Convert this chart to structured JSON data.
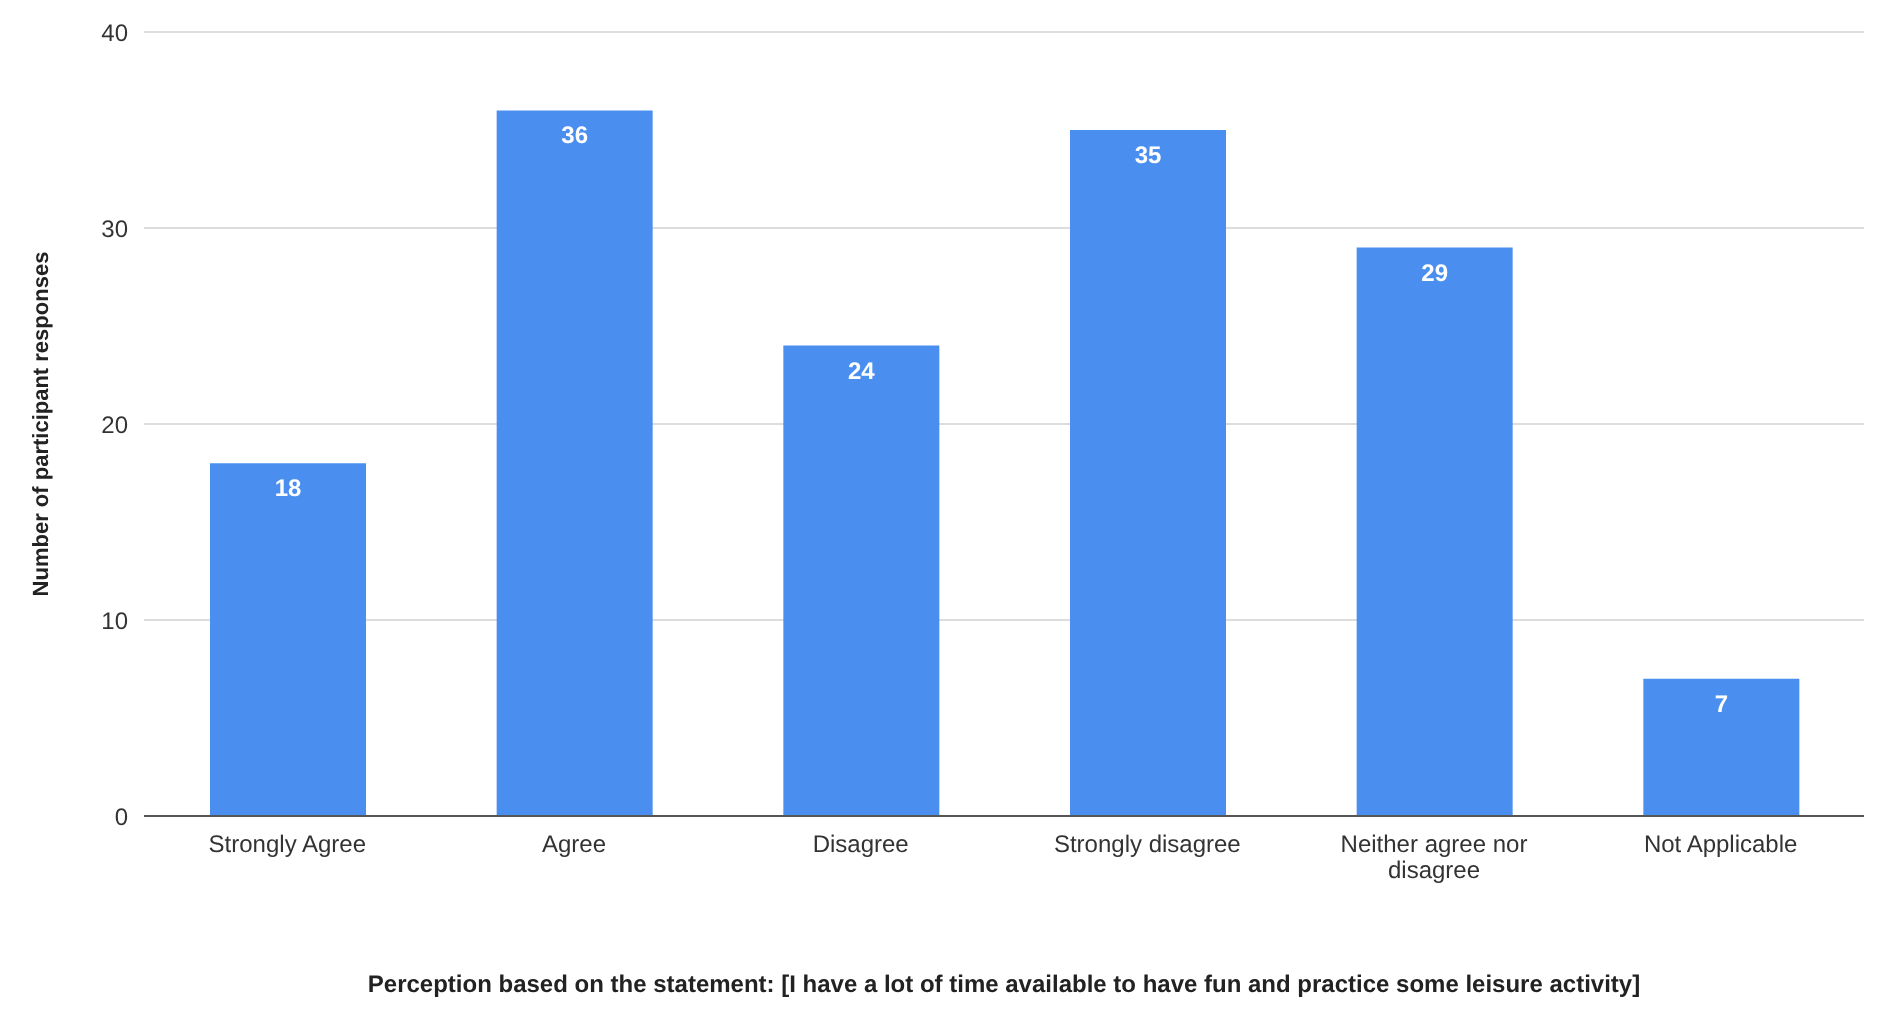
{
  "chart_data": {
    "type": "bar",
    "xlabel": "Perception based on the statement: [I have a lot of time available to have fun and practice some leisure activity]",
    "ylabel": "Number of participant responses",
    "categories": [
      "Strongly Agree",
      "Agree",
      "Disagree",
      "Strongly disagree",
      "Neither agree nor disagree",
      "Not Applicable"
    ],
    "values": [
      18,
      36,
      24,
      35,
      29,
      7
    ],
    "color": "#4a8ff0",
    "ylim": [
      0,
      40
    ],
    "yticks": [
      0,
      10,
      20,
      30,
      40
    ],
    "grid": "y",
    "data_labels": true
  }
}
